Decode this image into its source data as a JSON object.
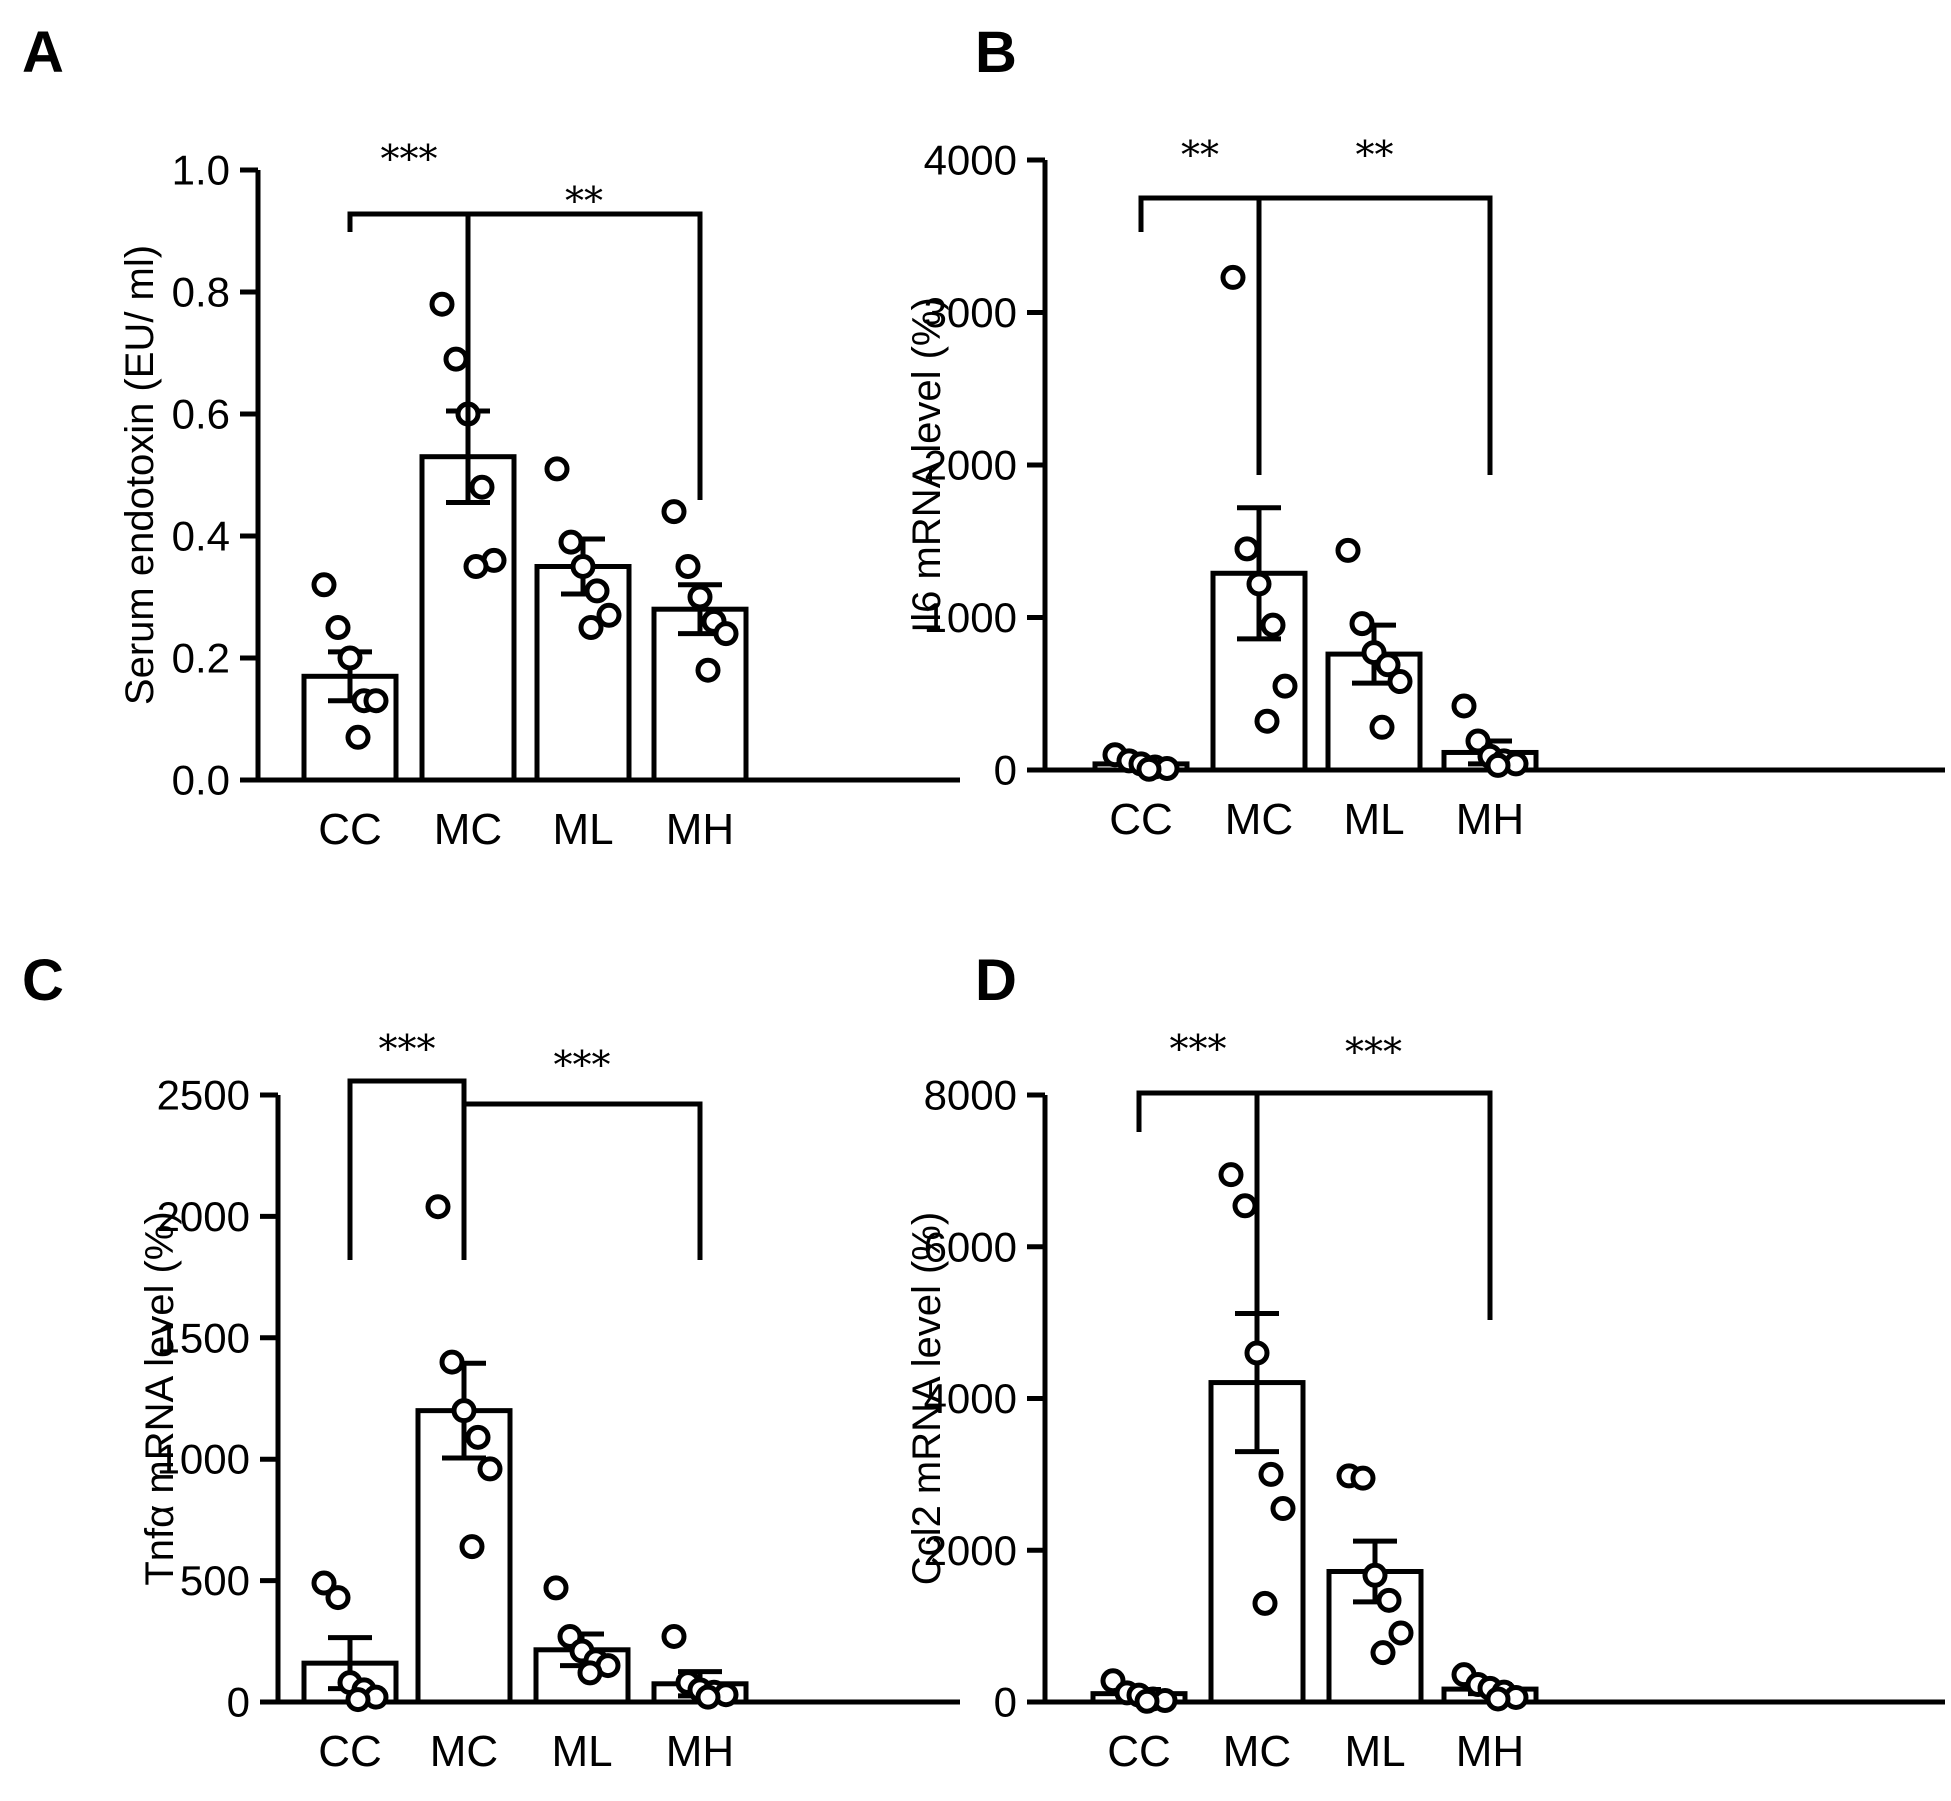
{
  "chart_data": [
    {
      "panel": "A",
      "type": "bar",
      "ylabel": "Serum endotoxin (EU/ ml)",
      "ylim": [
        0,
        1.0
      ],
      "yticks": [
        "0.0",
        "0.2",
        "0.4",
        "0.6",
        "0.8",
        "1.0"
      ],
      "ytick_values": [
        0,
        0.2,
        0.4,
        0.6,
        0.8,
        1.0
      ],
      "categories": [
        "CC",
        "MC",
        "ML",
        "MH"
      ],
      "means": [
        0.17,
        0.53,
        0.35,
        0.28
      ],
      "sem": [
        0.04,
        0.075,
        0.045,
        0.04
      ],
      "points": [
        [
          0.32,
          0.25,
          0.2,
          0.13,
          0.13,
          0.07
        ],
        [
          0.78,
          0.69,
          0.6,
          0.48,
          0.36,
          0.35
        ],
        [
          0.51,
          0.39,
          0.35,
          0.31,
          0.27,
          0.25
        ],
        [
          0.44,
          0.35,
          0.3,
          0.26,
          0.24,
          0.18
        ]
      ],
      "comparisons": [
        {
          "from": "CC",
          "to": "MC",
          "label": "***"
        },
        {
          "from": "MC",
          "to": "MH",
          "label": "**"
        }
      ]
    },
    {
      "panel": "B",
      "type": "bar",
      "ylabel": "Il6 mRNA level (%)",
      "ylim": [
        0,
        4000
      ],
      "yticks": [
        "0",
        "1000",
        "2000",
        "3000",
        "4000"
      ],
      "ytick_values": [
        0,
        1000,
        2000,
        3000,
        4000
      ],
      "categories": [
        "CC",
        "MC",
        "ML",
        "MH"
      ],
      "means": [
        40,
        1290,
        760,
        115
      ],
      "sem": [
        20,
        430,
        190,
        75
      ],
      "points": [
        [
          100,
          60,
          40,
          20,
          10,
          5
        ],
        [
          3230,
          1450,
          1220,
          950,
          550,
          320
        ],
        [
          1440,
          960,
          770,
          690,
          580,
          280
        ],
        [
          420,
          190,
          90,
          60,
          40,
          30
        ]
      ],
      "comparisons": [
        {
          "from": "CC",
          "to": "MC",
          "label": "**"
        },
        {
          "from": "MC",
          "to": "MH",
          "label": "**"
        }
      ]
    },
    {
      "panel": "C",
      "type": "bar",
      "ylabel": "Tnfα mRNA level (%)",
      "ylim": [
        0,
        2500
      ],
      "yticks": [
        "0",
        "500",
        "1000",
        "1500",
        "2000",
        "2500"
      ],
      "ytick_values": [
        0,
        500,
        1000,
        1500,
        2000,
        2500
      ],
      "categories": [
        "CC",
        "MC",
        "ML",
        "MH"
      ],
      "means": [
        160,
        1200,
        215,
        75
      ],
      "sem": [
        105,
        195,
        65,
        50
      ],
      "points": [
        [
          490,
          430,
          80,
          50,
          20,
          10
        ],
        [
          2040,
          1400,
          1200,
          1090,
          960,
          640
        ],
        [
          470,
          270,
          210,
          170,
          150,
          120
        ],
        [
          270,
          80,
          50,
          40,
          30,
          20
        ]
      ],
      "comparisons": [
        {
          "from": "CC",
          "to": "MC",
          "label": "***"
        },
        {
          "from": "MC",
          "to": "MH",
          "label": "***"
        }
      ]
    },
    {
      "panel": "D",
      "type": "bar",
      "ylabel": "Ccl2 mRNA level (%)",
      "ylim": [
        0,
        8000
      ],
      "yticks": [
        "0",
        "2000",
        "4000",
        "6000",
        "8000"
      ],
      "ytick_values": [
        0,
        2000,
        4000,
        6000,
        8000
      ],
      "categories": [
        "CC",
        "MC",
        "ML",
        "MH"
      ],
      "means": [
        110,
        4210,
        1720,
        170
      ],
      "sem": [
        55,
        910,
        400,
        60
      ],
      "points": [
        [
          280,
          120,
          90,
          40,
          20,
          10
        ],
        [
          6950,
          6540,
          4600,
          3000,
          2550,
          1300
        ],
        [
          2980,
          2950,
          1670,
          1340,
          910,
          650
        ],
        [
          360,
          230,
          180,
          130,
          60,
          40
        ]
      ],
      "comparisons": [
        {
          "from": "CC",
          "to": "MC",
          "label": "***"
        },
        {
          "from": "MC",
          "to": "MH",
          "label": "***"
        }
      ]
    }
  ]
}
